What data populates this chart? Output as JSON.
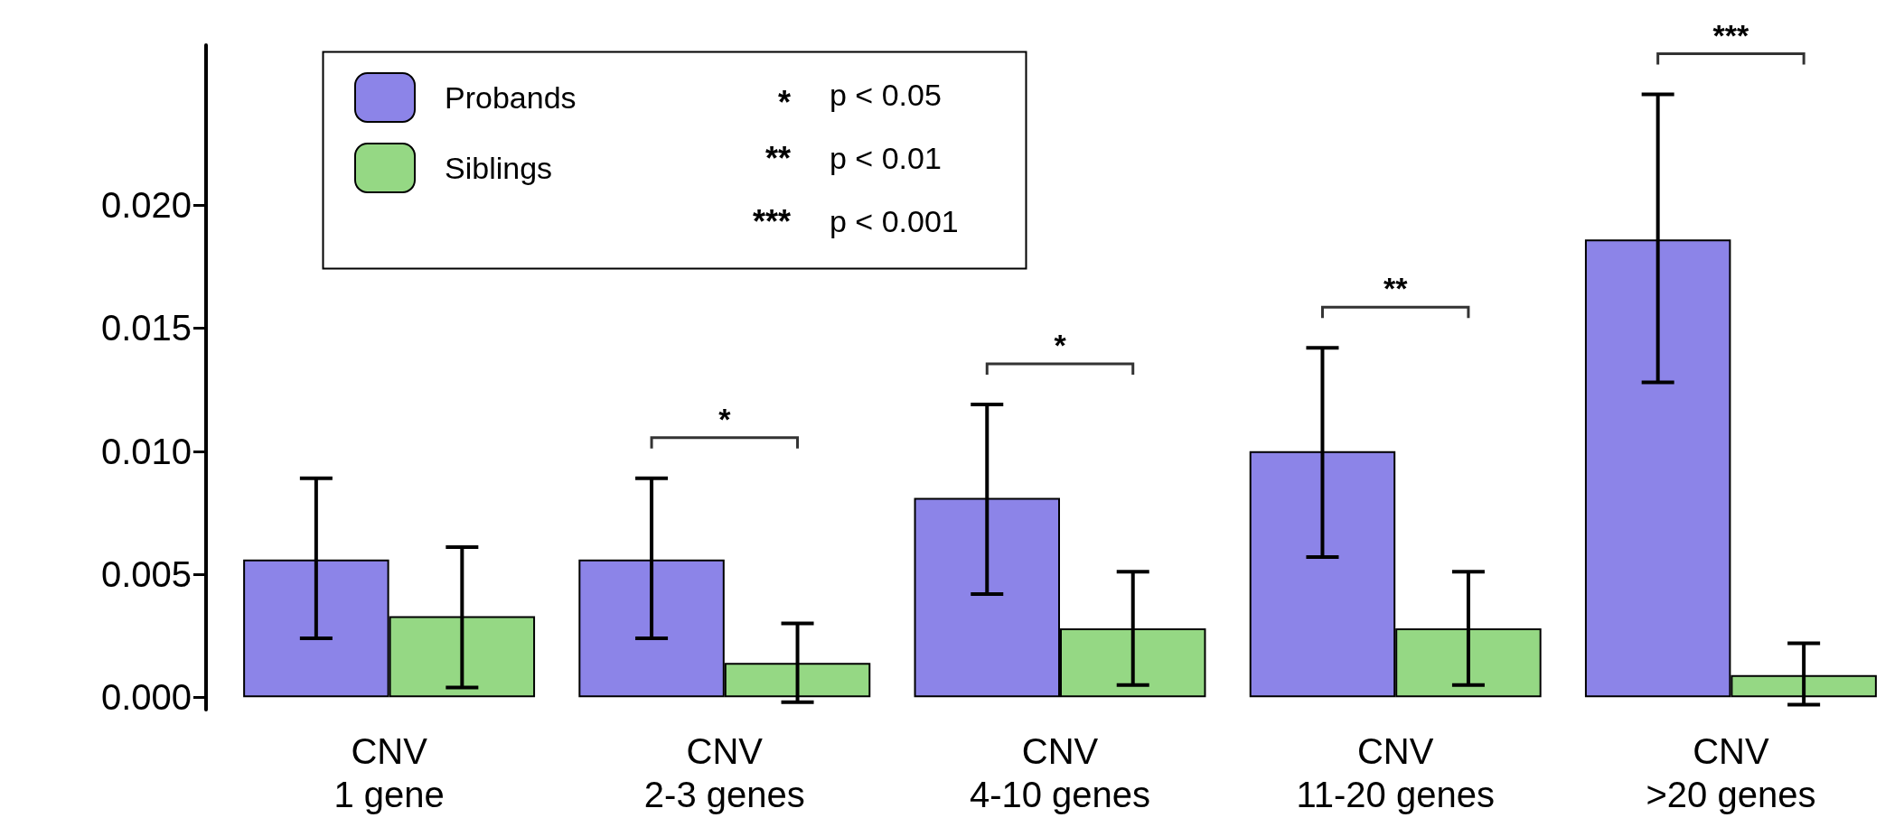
{
  "chart_data": {
    "type": "bar",
    "categories": [
      "CNV\n1 gene",
      "CNV\n2-3 genes",
      "CNV\n4-10 genes",
      "CNV\n11-20 genes",
      "CNV\n>20 genes"
    ],
    "series": [
      {
        "name": "Probands",
        "color": "#8c84e8",
        "values": [
          0.0056,
          0.0056,
          0.0081,
          0.01,
          0.0186
        ],
        "errors": [
          [
            0.0024,
            0.0089
          ],
          [
            0.0024,
            0.0089
          ],
          [
            0.0042,
            0.0119
          ],
          [
            0.0057,
            0.0142
          ],
          [
            0.0128,
            0.0245
          ]
        ]
      },
      {
        "name": "Siblings",
        "color": "#95d884",
        "values": [
          0.0033,
          0.0014,
          0.0028,
          0.0028,
          0.0009
        ],
        "errors": [
          [
            0.0004,
            0.0061
          ],
          [
            -0.0002,
            0.003
          ],
          [
            0.0005,
            0.0051
          ],
          [
            0.0005,
            0.0051
          ],
          [
            -0.0003,
            0.0022
          ]
        ]
      }
    ],
    "ylim": [
      -0.0005,
      0.0265
    ],
    "yticks": [
      {
        "value": 0,
        "label": "0.000"
      },
      {
        "value": 0.005,
        "label": "0.005"
      },
      {
        "value": 0.01,
        "label": "0.010"
      },
      {
        "value": 0.015,
        "label": "0.015"
      },
      {
        "value": 0.02,
        "label": "0.020"
      }
    ],
    "annotations": [
      "*",
      "*",
      "**",
      "***",
      "*",
      "p < 0.05",
      "**",
      "p < 0.01",
      "***",
      "p < 0.001"
    ],
    "legend": "top left",
    "grid": false
  }
}
